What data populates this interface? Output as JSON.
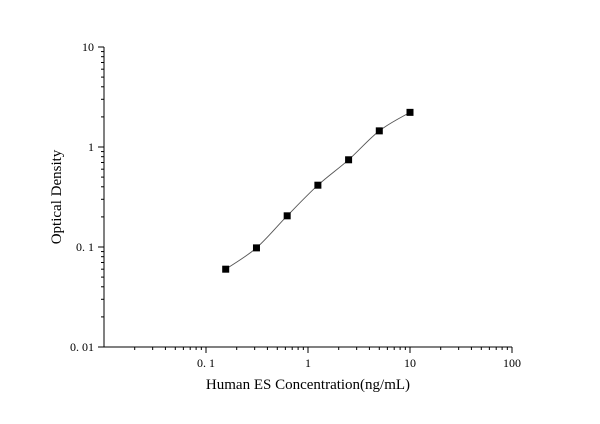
{
  "chart_data": {
    "type": "scatter",
    "title": "",
    "xlabel": "Human ES Concentration(ng/mL)",
    "ylabel": "Optical Density",
    "xscale": "log",
    "yscale": "log",
    "xlim": [
      0.01,
      100
    ],
    "ylim": [
      0.01,
      10
    ],
    "xticks": [
      0.1,
      1,
      10,
      100
    ],
    "xtick_labels": [
      "0. 1",
      "1",
      "10",
      "100"
    ],
    "yticks": [
      0.01,
      0.1,
      1,
      10
    ],
    "ytick_labels": [
      "0. 01",
      "0. 1",
      "1",
      "10"
    ],
    "grid": false,
    "legend": "none",
    "colors": {
      "marker": "#000000",
      "line": "#555555",
      "axis": "#000000"
    },
    "series": [
      {
        "marker": "square",
        "connected": true,
        "x": [
          0.156,
          0.3125,
          0.625,
          1.25,
          2.5,
          5,
          10
        ],
        "y": [
          0.06,
          0.098,
          0.205,
          0.415,
          0.745,
          1.45,
          2.22
        ]
      }
    ]
  }
}
